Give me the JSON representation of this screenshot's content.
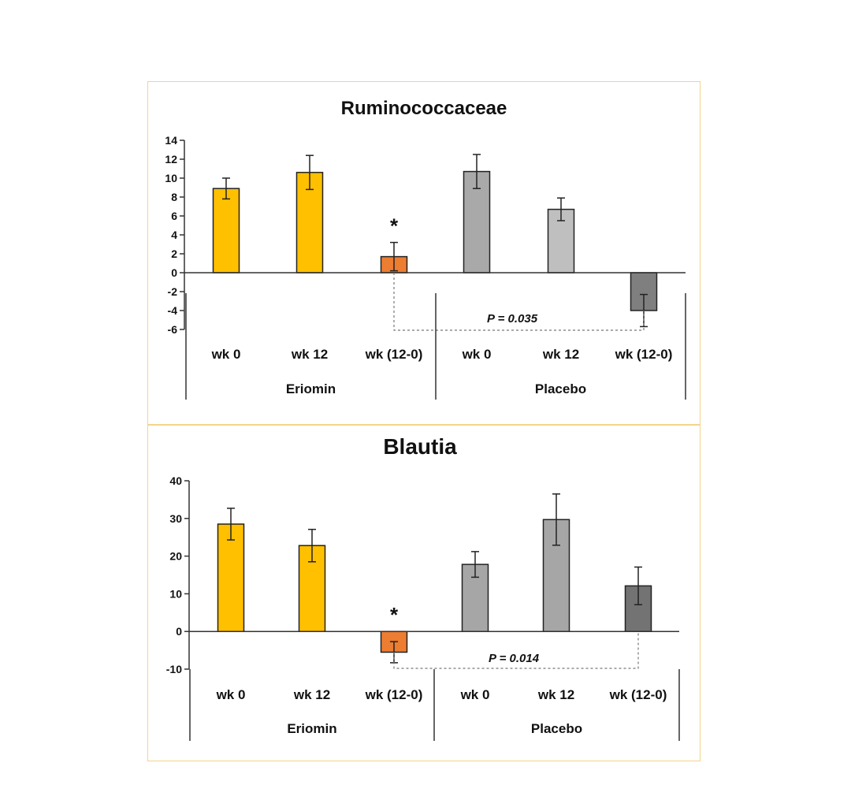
{
  "chart_data": [
    {
      "type": "bar",
      "title": "Ruminococcaceae",
      "categories": [
        "wk 0",
        "wk 12",
        "wk (12-0)",
        "wk 0",
        "wk 12",
        "wk (12-0)"
      ],
      "groups": [
        {
          "label": "Eriomin",
          "categories": [
            "wk 0",
            "wk 12",
            "wk (12-0)"
          ]
        },
        {
          "label": "Placebo",
          "categories": [
            "wk 0",
            "wk 12",
            "wk (12-0)"
          ]
        }
      ],
      "values": [
        8.9,
        10.6,
        1.7,
        10.7,
        6.7,
        -4.0
      ],
      "errors": [
        1.1,
        1.8,
        1.5,
        1.8,
        1.2,
        1.7
      ],
      "colors": [
        "#FFC000",
        "#FFC000",
        "#ED7D31",
        "#A9A9A9",
        "#BFBFBF",
        "#7F7F7F"
      ],
      "significance": [
        {
          "index": 2,
          "label": "*"
        }
      ],
      "comparison": {
        "from": 2,
        "to": 5,
        "label": "P = 0.035"
      },
      "yticks": [
        "14",
        "12",
        "10",
        "8",
        "6",
        "4",
        "2",
        "0",
        "-2",
        "-4",
        "-6"
      ],
      "ylim": [
        -6,
        14
      ],
      "xlabel": "",
      "ylabel": ""
    },
    {
      "type": "bar",
      "title": "Blautia",
      "categories": [
        "wk 0",
        "wk 12",
        "wk (12-0)",
        "wk 0",
        "wk 12",
        "wk (12-0)"
      ],
      "groups": [
        {
          "label": "Eriomin",
          "categories": [
            "wk 0",
            "wk 12",
            "wk (12-0)"
          ]
        },
        {
          "label": "Placebo",
          "categories": [
            "wk 0",
            "wk 12",
            "wk (12-0)"
          ]
        }
      ],
      "values": [
        28.5,
        22.8,
        -5.5,
        17.8,
        29.7,
        12.1
      ],
      "errors": [
        4.2,
        4.3,
        2.8,
        3.4,
        6.8,
        5.0
      ],
      "colors": [
        "#FFC000",
        "#FFC000",
        "#ED7D31",
        "#A6A6A6",
        "#A6A6A6",
        "#737373"
      ],
      "significance": [
        {
          "index": 2,
          "label": "*"
        }
      ],
      "comparison": {
        "from": 2,
        "to": 5,
        "label": "P = 0.014"
      },
      "yticks": [
        "40",
        "30",
        "20",
        "10",
        "0",
        "-10"
      ],
      "ylim": [
        -10,
        40
      ],
      "xlabel": "",
      "ylabel": ""
    }
  ]
}
